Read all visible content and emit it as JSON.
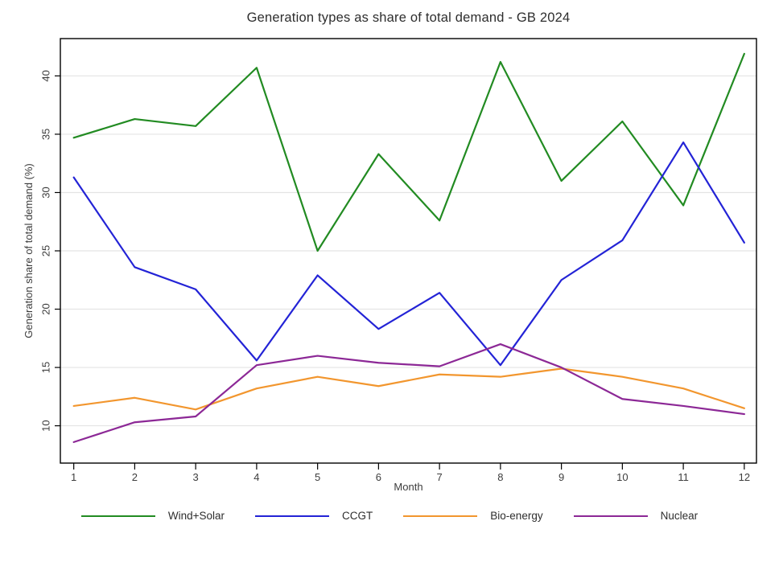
{
  "title": "Generation types as share of total demand - GB 2024",
  "chart_data": {
    "type": "line",
    "title": "Generation types as share of total demand - GB 2024",
    "xlabel": "Month",
    "ylabel": "Generation share of total demand (%)",
    "x": [
      1,
      2,
      3,
      4,
      5,
      6,
      7,
      8,
      9,
      10,
      11,
      12
    ],
    "xticks": [
      1,
      2,
      3,
      4,
      5,
      6,
      7,
      8,
      9,
      10,
      11,
      12
    ],
    "yticks": [
      10,
      15,
      20,
      25,
      30,
      35,
      40
    ],
    "xlim": [
      0.78,
      12.2
    ],
    "ylim": [
      6.8,
      43.2
    ],
    "grid": "horizontal",
    "legend_position": "bottom",
    "series": [
      {
        "name": "Wind+Solar",
        "color": "#228B22",
        "values": [
          34.7,
          36.3,
          35.7,
          40.7,
          25.0,
          33.3,
          27.6,
          41.2,
          31.0,
          36.1,
          28.9,
          41.9
        ]
      },
      {
        "name": "CCGT",
        "color": "#2323D6",
        "values": [
          31.3,
          23.6,
          21.7,
          15.6,
          22.9,
          18.3,
          21.4,
          15.2,
          22.5,
          25.9,
          34.3,
          25.7
        ]
      },
      {
        "name": "Bio-energy",
        "color": "#F2962E",
        "values": [
          11.7,
          12.4,
          11.4,
          13.2,
          14.2,
          13.4,
          14.4,
          14.2,
          14.9,
          14.2,
          13.2,
          11.5
        ]
      },
      {
        "name": "Nuclear",
        "color": "#8C2896",
        "values": [
          8.6,
          10.3,
          10.8,
          15.2,
          16.0,
          15.4,
          15.1,
          17.0,
          15.0,
          12.3,
          11.7,
          11.0
        ]
      }
    ],
    "colors": {
      "background": "#ffffff",
      "grid": "#e4e4e4",
      "axis": "#000000",
      "text": "#3d3d3d"
    }
  }
}
